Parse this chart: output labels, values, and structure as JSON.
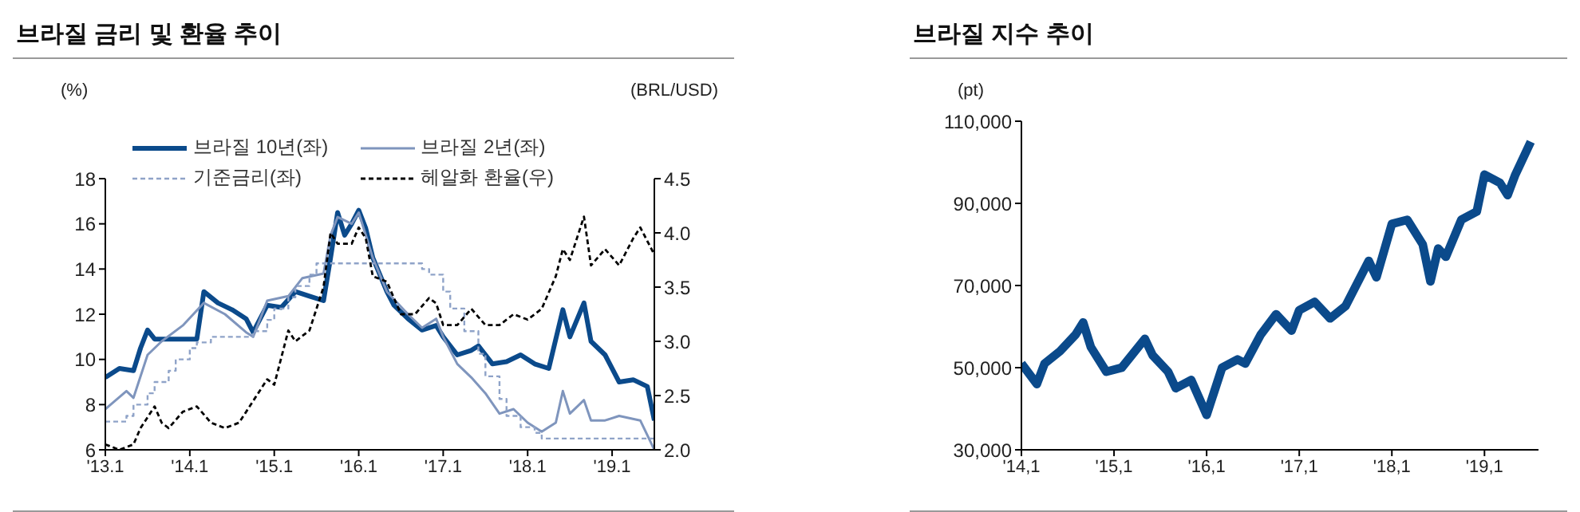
{
  "chart_data": [
    {
      "type": "line",
      "title": "브라질 금리 및 환율 추이",
      "ylabel": "(%)",
      "y2label": "(BRL/USD)",
      "legend": "top",
      "xlim": [
        "2013-01",
        "2019-07"
      ],
      "xticks": [
        {
          "value": "2013-01",
          "label": "'13.1"
        },
        {
          "value": "2014-01",
          "label": "'14.1"
        },
        {
          "value": "2015-01",
          "label": "'15.1"
        },
        {
          "value": "2016-01",
          "label": "'16.1"
        },
        {
          "value": "2017-01",
          "label": "'17.1"
        },
        {
          "value": "2018-01",
          "label": "'18.1"
        },
        {
          "value": "2019-01",
          "label": "'19.1"
        }
      ],
      "ylim": [
        6,
        18
      ],
      "yticks": [
        6,
        8,
        10,
        12,
        14,
        16,
        18
      ],
      "y2lim": [
        2.0,
        4.5
      ],
      "y2ticks": [
        {
          "value": 2,
          "label": "2.0"
        },
        {
          "value": 2.5,
          "label": "2.5"
        },
        {
          "value": 3,
          "label": "3.0"
        },
        {
          "value": 3.5,
          "label": "3.5"
        },
        {
          "value": 4,
          "label": "4.0"
        },
        {
          "value": 4.5,
          "label": "4.5"
        }
      ],
      "series": [
        {
          "name": "브라질 10년(좌)",
          "color": "#0b4a8b",
          "line_style": "solid",
          "x": [
            "2013-01",
            "2013-03",
            "2013-05",
            "2013-06",
            "2013-07",
            "2013-08",
            "2014-02",
            "2014-03",
            "2014-05",
            "2014-07",
            "2014-09",
            "2014-10",
            "2014-12",
            "2015-02",
            "2015-04",
            "2015-06",
            "2015-08",
            "2015-09",
            "2015-10",
            "2015-11",
            "2015-12",
            "2016-01",
            "2016-02",
            "2016-03",
            "2016-05",
            "2016-06",
            "2016-08",
            "2016-10",
            "2016-12",
            "2017-01",
            "2017-03",
            "2017-05",
            "2017-06",
            "2017-08",
            "2017-10",
            "2017-12",
            "2018-02",
            "2018-04",
            "2018-06",
            "2018-07",
            "2018-09",
            "2018-10",
            "2018-12",
            "2019-02",
            "2019-04",
            "2019-06",
            "2019-07"
          ],
          "values": [
            9.2,
            9.6,
            9.5,
            10.5,
            11.3,
            10.9,
            10.9,
            13.0,
            12.5,
            12.2,
            11.8,
            11.2,
            12.4,
            12.3,
            13.0,
            12.8,
            12.6,
            14.5,
            16.5,
            15.5,
            16.0,
            16.6,
            15.8,
            14.5,
            13.0,
            12.4,
            11.8,
            11.3,
            11.5,
            11.0,
            10.2,
            10.4,
            10.6,
            9.8,
            9.9,
            10.2,
            9.8,
            9.6,
            12.2,
            11.0,
            12.5,
            10.8,
            10.2,
            9.0,
            9.1,
            8.8,
            7.3
          ]
        },
        {
          "name": "브라질 2년(좌)",
          "color": "#7f95bd",
          "line_style": "solid",
          "x": [
            "2013-01",
            "2013-04",
            "2013-05",
            "2013-07",
            "2013-09",
            "2013-12",
            "2014-03",
            "2014-06",
            "2014-09",
            "2014-10",
            "2014-12",
            "2015-03",
            "2015-05",
            "2015-08",
            "2015-09",
            "2015-10",
            "2015-12",
            "2016-01",
            "2016-03",
            "2016-05",
            "2016-08",
            "2016-10",
            "2016-12",
            "2017-01",
            "2017-03",
            "2017-05",
            "2017-07",
            "2017-09",
            "2017-11",
            "2018-01",
            "2018-03",
            "2018-05",
            "2018-06",
            "2018-07",
            "2018-09",
            "2018-10",
            "2018-12",
            "2019-02",
            "2019-05",
            "2019-07"
          ],
          "values": [
            7.8,
            8.6,
            8.3,
            10.2,
            10.8,
            11.5,
            12.5,
            12.0,
            11.2,
            11.0,
            12.6,
            12.8,
            13.6,
            13.8,
            15.5,
            16.3,
            16.0,
            16.5,
            14.5,
            13.0,
            12.0,
            11.4,
            11.8,
            11.0,
            9.8,
            9.2,
            8.5,
            7.6,
            7.8,
            7.2,
            6.8,
            7.2,
            8.6,
            7.6,
            8.2,
            7.3,
            7.3,
            7.5,
            7.3,
            6.0
          ]
        },
        {
          "name": "기준금리(좌)",
          "color": "#8fa3c8",
          "type": "step",
          "line_style": "dashed",
          "x": [
            "2013-01",
            "2013-04",
            "2013-05",
            "2013-07",
            "2013-08",
            "2013-10",
            "2013-11",
            "2014-01",
            "2014-02",
            "2014-04",
            "2014-10",
            "2014-12",
            "2015-01",
            "2015-03",
            "2015-04",
            "2015-06",
            "2015-07",
            "2016-10",
            "2016-11",
            "2017-01",
            "2017-02",
            "2017-04",
            "2017-06",
            "2017-07",
            "2017-09",
            "2017-10",
            "2017-12",
            "2018-02",
            "2018-03",
            "2019-07"
          ],
          "values": [
            7.25,
            7.5,
            8.0,
            8.5,
            9.0,
            9.5,
            10.0,
            10.5,
            10.75,
            11.0,
            11.25,
            11.75,
            12.25,
            12.75,
            13.25,
            13.75,
            14.25,
            14.0,
            13.75,
            13.0,
            12.25,
            11.25,
            10.25,
            9.25,
            8.25,
            7.5,
            7.0,
            6.75,
            6.5,
            6.5
          ]
        },
        {
          "name": "헤알화 환율(우)",
          "color": "#000000",
          "axis": "y2",
          "line_style": "dashed",
          "x": [
            "2013-01",
            "2013-03",
            "2013-05",
            "2013-06",
            "2013-08",
            "2013-09",
            "2013-10",
            "2013-12",
            "2014-02",
            "2014-04",
            "2014-06",
            "2014-08",
            "2014-10",
            "2014-12",
            "2015-01",
            "2015-03",
            "2015-04",
            "2015-06",
            "2015-08",
            "2015-09",
            "2015-10",
            "2015-12",
            "2016-01",
            "2016-02",
            "2016-03",
            "2016-05",
            "2016-07",
            "2016-09",
            "2016-11",
            "2016-12",
            "2017-01",
            "2017-03",
            "2017-05",
            "2017-07",
            "2017-09",
            "2017-11",
            "2018-01",
            "2018-03",
            "2018-05",
            "2018-06",
            "2018-07",
            "2018-09",
            "2018-10",
            "2018-12",
            "2019-02",
            "2019-04",
            "2019-05",
            "2019-07"
          ],
          "values": [
            2.05,
            2.0,
            2.05,
            2.2,
            2.4,
            2.25,
            2.2,
            2.35,
            2.4,
            2.25,
            2.2,
            2.25,
            2.45,
            2.65,
            2.6,
            3.1,
            3.0,
            3.1,
            3.5,
            4.0,
            3.9,
            3.9,
            4.05,
            3.95,
            3.6,
            3.55,
            3.25,
            3.25,
            3.4,
            3.35,
            3.15,
            3.15,
            3.3,
            3.15,
            3.15,
            3.25,
            3.2,
            3.3,
            3.6,
            3.85,
            3.75,
            4.15,
            3.7,
            3.85,
            3.7,
            3.95,
            4.05,
            3.8
          ]
        }
      ]
    },
    {
      "type": "line",
      "title": "브라질 지수 추이",
      "ylabel": "(pt)",
      "xlim": [
        "2014-01",
        "2019-08"
      ],
      "xticks": [
        {
          "value": "2014-01",
          "label": "'14,1"
        },
        {
          "value": "2015-01",
          "label": "'15,1"
        },
        {
          "value": "2016-01",
          "label": "'16,1"
        },
        {
          "value": "2017-01",
          "label": "'17,1"
        },
        {
          "value": "2018-01",
          "label": "'18,1"
        },
        {
          "value": "2019-01",
          "label": "'19,1"
        }
      ],
      "ylim": [
        30000,
        110000
      ],
      "yticks": [
        {
          "value": 30000,
          "label": "30,000"
        },
        {
          "value": 50000,
          "label": "50,000"
        },
        {
          "value": 70000,
          "label": "70,000"
        },
        {
          "value": 90000,
          "label": "90,000"
        },
        {
          "value": 110000,
          "label": "110,000"
        }
      ],
      "series": [
        {
          "color": "#0b4a8b",
          "line_style": "solid",
          "x": [
            "2014-01",
            "2014-03",
            "2014-04",
            "2014-06",
            "2014-08",
            "2014-09",
            "2014-10",
            "2014-12",
            "2015-02",
            "2015-05",
            "2015-06",
            "2015-08",
            "2015-09",
            "2015-11",
            "2016-01",
            "2016-03",
            "2016-05",
            "2016-06",
            "2016-08",
            "2016-10",
            "2016-12",
            "2017-01",
            "2017-03",
            "2017-05",
            "2017-07",
            "2017-10",
            "2017-11",
            "2018-01",
            "2018-03",
            "2018-05",
            "2018-06",
            "2018-07",
            "2018-08",
            "2018-10",
            "2018-12",
            "2019-01",
            "2019-03",
            "2019-04",
            "2019-05",
            "2019-07"
          ],
          "values": [
            51000,
            46000,
            51000,
            54000,
            58000,
            61000,
            55000,
            49000,
            50000,
            57000,
            53000,
            49000,
            45000,
            47000,
            38500,
            50000,
            52000,
            51000,
            58000,
            63000,
            59000,
            64000,
            66000,
            62000,
            65000,
            76000,
            72000,
            85000,
            86000,
            80000,
            71000,
            79000,
            77000,
            86000,
            88000,
            97000,
            95000,
            92000,
            97000,
            105000
          ]
        }
      ]
    }
  ]
}
